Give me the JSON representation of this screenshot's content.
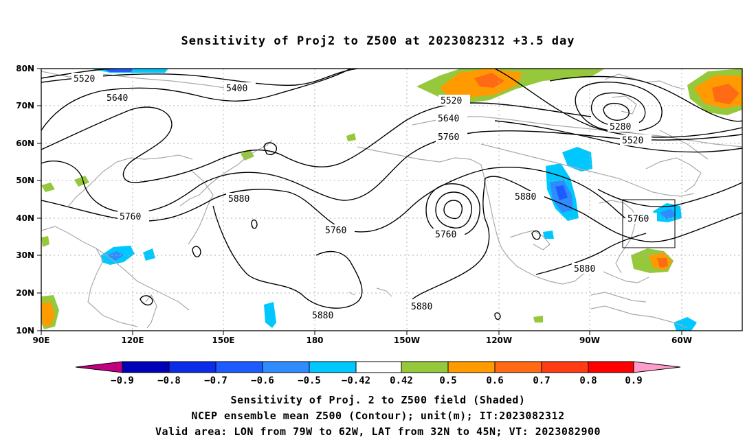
{
  "title": "Sensitivity of Proj2 to Z500 at 2023082312 +3.5 day",
  "map": {
    "lon_range": [
      90,
      300
    ],
    "lat_range": [
      10,
      80
    ],
    "x_ticks": [
      "90E",
      "120E",
      "150E",
      "180",
      "150W",
      "120W",
      "90W",
      "60W"
    ],
    "y_ticks": [
      "80N",
      "70N",
      "60N",
      "50N",
      "40N",
      "30N",
      "20N",
      "10N"
    ],
    "contour_labels": [
      "5520",
      "5400",
      "5640",
      "5520",
      "5640",
      "5760",
      "5280",
      "5520",
      "5880",
      "5760",
      "5760",
      "5760",
      "5880",
      "5760",
      "5880",
      "5880",
      "5880"
    ],
    "colors": {
      "coast": "#a9a9a9",
      "grid": "#b0b0b0",
      "box": "#000000"
    }
  },
  "colorbar": {
    "ticks": [
      "−0.9",
      "−0.8",
      "−0.7",
      "−0.6",
      "−0.5",
      "−0.42",
      "0.42",
      "0.5",
      "0.6",
      "0.7",
      "0.8",
      "0.9"
    ],
    "colors": [
      "#c0007f",
      "#0000b8",
      "#0a2ce6",
      "#1e5bff",
      "#2f8cff",
      "#00c8ff",
      "#ffffff",
      "#96c83c",
      "#ff9b00",
      "#ff6a14",
      "#ff3c14",
      "#ff0000",
      "#ff9ccc"
    ]
  },
  "footer": {
    "line1": "Sensitivity of Proj. 2 to Z500 field (Shaded)",
    "line2": "NCEP ensemble mean Z500 (Contour); unit(m); IT:2023082312",
    "line3": "Valid area: LON from 79W to 62W, LAT from 32N to 45N; VT: 2023082900"
  }
}
